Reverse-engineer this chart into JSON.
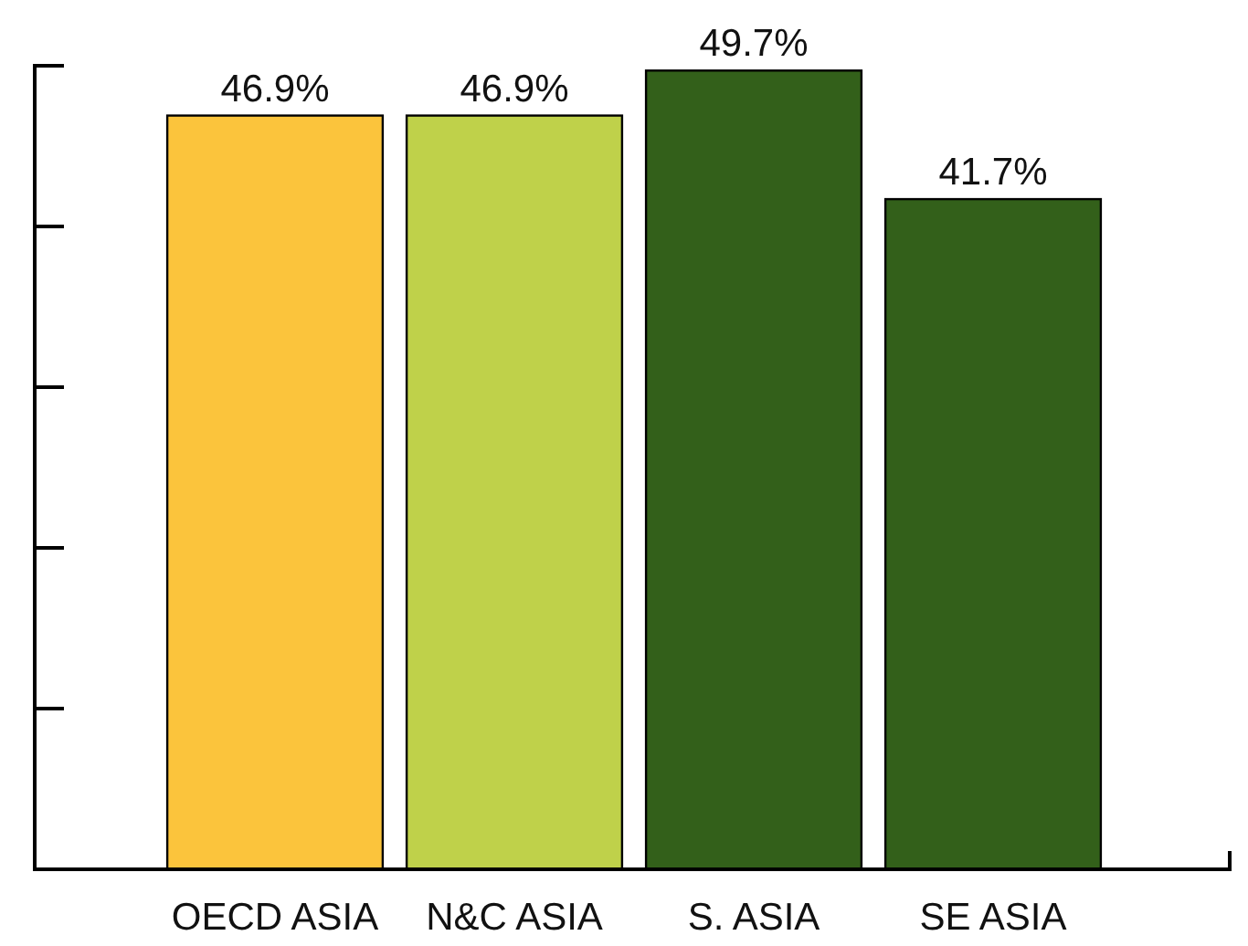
{
  "chart_data": {
    "type": "bar",
    "categories": [
      "OECD ASIA",
      "N&C ASIA",
      "S. ASIA",
      "SE ASIA"
    ],
    "values": [
      46.9,
      46.9,
      49.7,
      41.7
    ],
    "colors": [
      "#fbc43c",
      "#bfd14a",
      "#33601a",
      "#33601a"
    ],
    "value_labels": [
      "46.9%",
      "46.9%",
      "49.7%",
      "41.7%"
    ],
    "ylim": [
      0,
      50
    ],
    "yticks": [
      {
        "value": 0,
        "label": null
      },
      {
        "value": 10,
        "label": null
      },
      {
        "value": 20,
        "label": null
      },
      {
        "value": 30,
        "label": null
      },
      {
        "value": 40,
        "label": null
      },
      {
        "value": 50,
        "label": null
      }
    ],
    "tick_labels": "x",
    "grid": false
  }
}
